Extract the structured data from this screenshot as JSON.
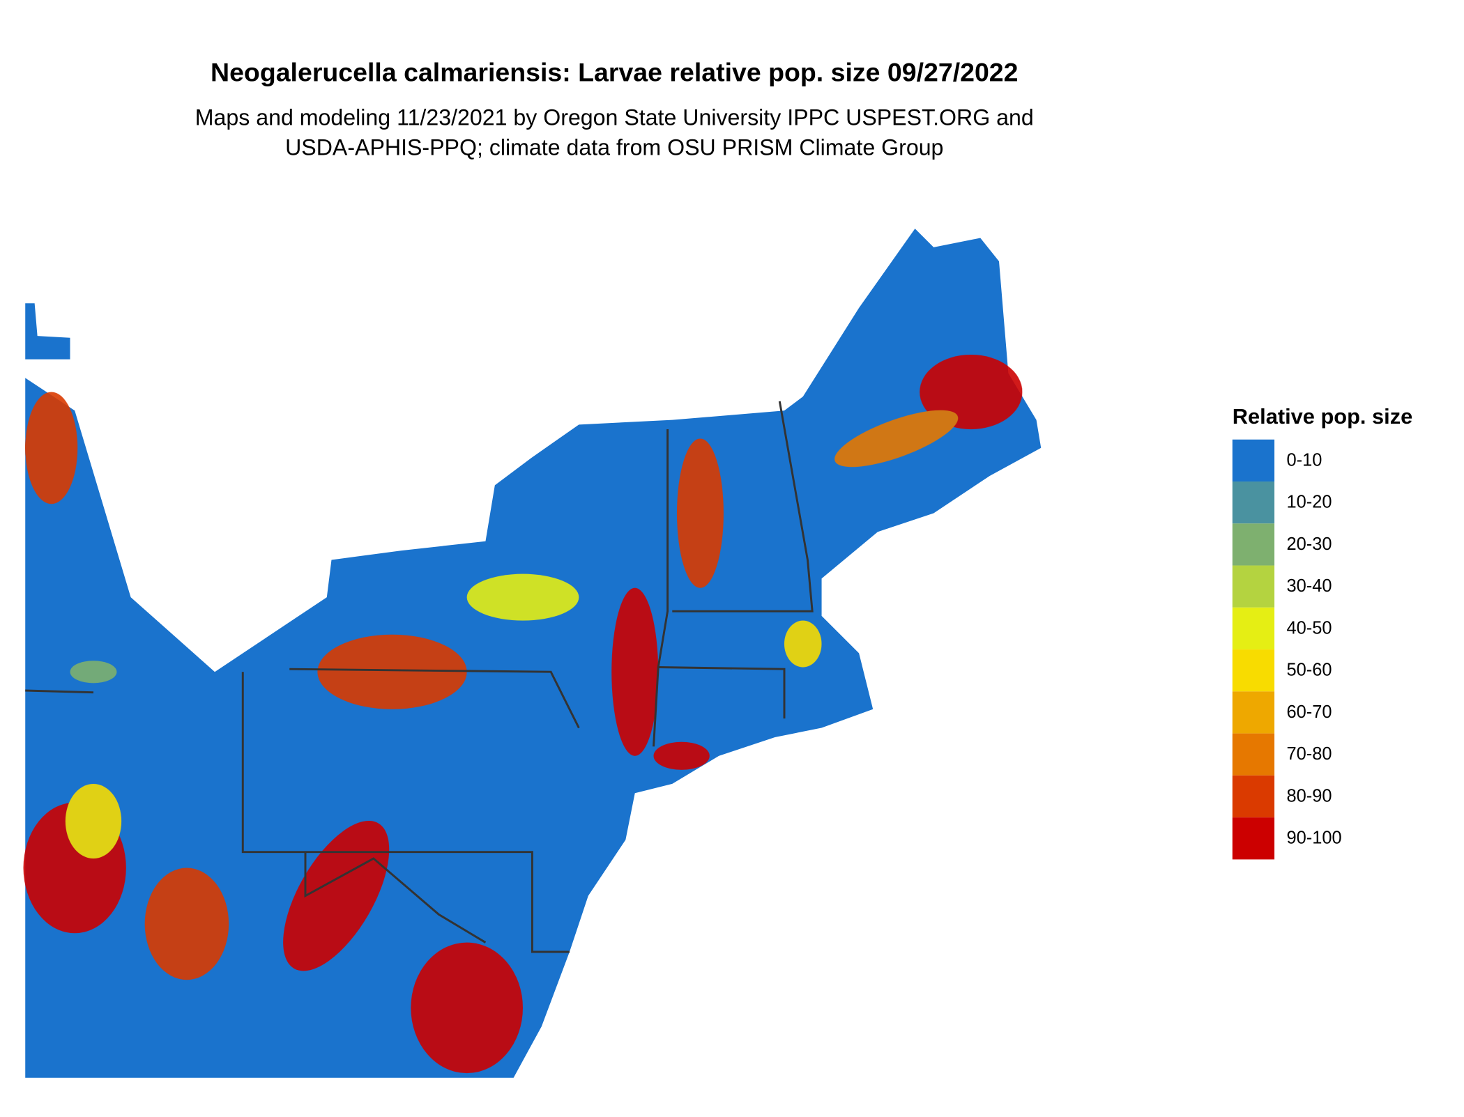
{
  "title": "Neogalerucella calmariensis: Larvae relative pop. size 09/27/2022",
  "subtitle": [
    "Maps and modeling 11/23/2021 by Oregon State University IPPC USPEST.ORG and",
    "USDA-APHIS-PPQ; climate data from OSU PRISM Climate Group"
  ],
  "legend": {
    "title": "Relative pop. size",
    "items": [
      {
        "label": "0-10",
        "color": "#1a73cd"
      },
      {
        "label": "10-20",
        "color": "#4a92a0"
      },
      {
        "label": "20-30",
        "color": "#7eb06f"
      },
      {
        "label": "30-40",
        "color": "#b4d340"
      },
      {
        "label": "40-50",
        "color": "#e5ee14"
      },
      {
        "label": "50-60",
        "color": "#f8dc00"
      },
      {
        "label": "60-70",
        "color": "#eea800"
      },
      {
        "label": "70-80",
        "color": "#e67800"
      },
      {
        "label": "80-90",
        "color": "#da3a00"
      },
      {
        "label": "90-100",
        "color": "#cc0000"
      }
    ]
  }
}
